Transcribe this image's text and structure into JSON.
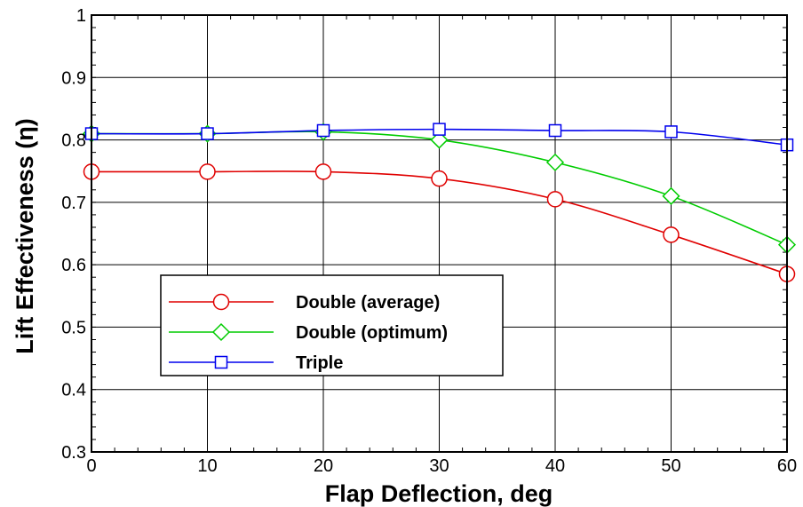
{
  "chart_data": {
    "type": "line",
    "xlabel": "Flap Deflection, deg",
    "ylabel": "Lift Effectiveness (η)",
    "xlim": [
      0,
      60
    ],
    "ylim": [
      0.3,
      1
    ],
    "xticks": [
      0,
      10,
      20,
      30,
      40,
      50,
      60
    ],
    "yticks": [
      0.3,
      0.4,
      0.5,
      0.6,
      0.7,
      0.8,
      0.9,
      1
    ],
    "x_tick_labels": [
      "0",
      "10",
      "20",
      "30",
      "40",
      "50",
      "60"
    ],
    "y_tick_labels": [
      "0.3",
      "0.4",
      "0.5",
      "0.6",
      "0.7",
      "0.8",
      "0.9",
      "1"
    ],
    "grid": true,
    "legend_position": "lower-left",
    "series": [
      {
        "name": "Double (average)",
        "color": "#e00000",
        "marker": "circle",
        "x": [
          0,
          10,
          20,
          30,
          40,
          50,
          60
        ],
        "y": [
          0.749,
          0.749,
          0.749,
          0.738,
          0.705,
          0.648,
          0.585
        ]
      },
      {
        "name": "Double (optimum)",
        "color": "#00cc00",
        "marker": "diamond",
        "x": [
          0,
          10,
          20,
          30,
          40,
          50,
          60
        ],
        "y": [
          0.81,
          0.81,
          0.813,
          0.8,
          0.764,
          0.71,
          0.632
        ]
      },
      {
        "name": "Triple",
        "color": "#0000ee",
        "marker": "square",
        "x": [
          0,
          10,
          20,
          30,
          40,
          50,
          60
        ],
        "y": [
          0.81,
          0.81,
          0.815,
          0.817,
          0.815,
          0.813,
          0.792
        ]
      }
    ]
  }
}
